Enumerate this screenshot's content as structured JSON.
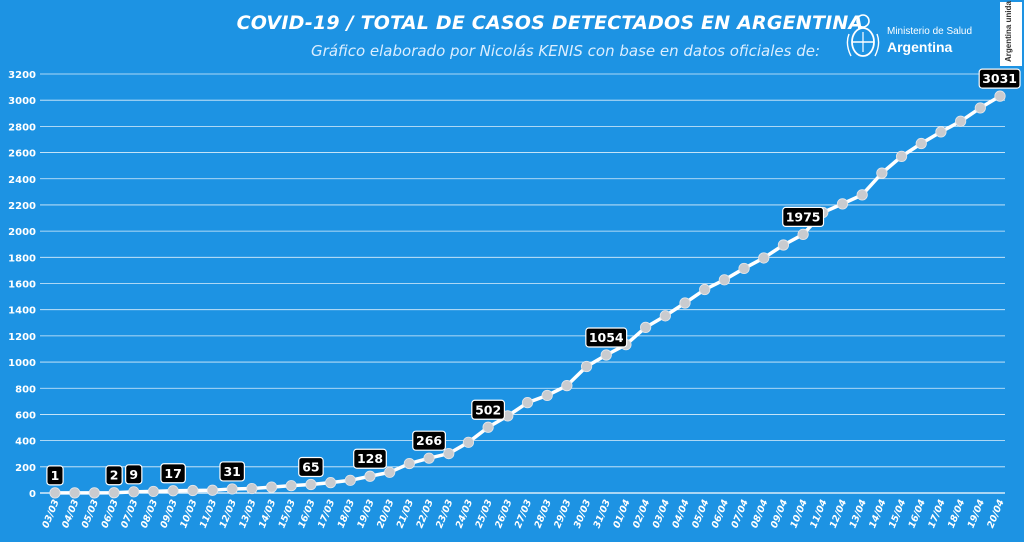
{
  "header": {
    "title": "COVID-19  /  TOTAL DE CASOS DETECTADOS EN ARGENTINA",
    "subtitle": "Gráfico elaborado por Nicolás KENIS con base en datos oficiales de:",
    "logo_line1": "Ministerio de Salud",
    "logo_line2": "Argentina",
    "badge": "Argentina unida"
  },
  "colors": {
    "background": "#1d93e3",
    "line": "#ffffff",
    "marker": "#c9cbcf",
    "label_bg": "#000000",
    "label_text": "#ffffff",
    "grid": "#ffffff"
  },
  "chart_data": {
    "type": "line",
    "title": "COVID-19  /  TOTAL DE CASOS DETECTADOS EN ARGENTINA",
    "xlabel": "",
    "ylabel": "",
    "ylim": [
      0,
      3200
    ],
    "yticks": [
      "0",
      "200",
      "400",
      "600",
      "800",
      "1000",
      "1200",
      "1400",
      "1600",
      "1800",
      "2000",
      "2200",
      "2400",
      "2600",
      "2800",
      "3000",
      "3200"
    ],
    "grid": true,
    "legend": "none",
    "categories": [
      "03/03",
      "04/03",
      "05/03",
      "06/03",
      "07/03",
      "08/03",
      "09/03",
      "10/03",
      "11/03",
      "12/03",
      "13/03",
      "14/03",
      "15/03",
      "16/03",
      "17/03",
      "18/03",
      "19/03",
      "20/03",
      "21/03",
      "22/03",
      "23/03",
      "24/03",
      "25/03",
      "26/03",
      "27/03",
      "28/03",
      "29/03",
      "30/03",
      "31/03",
      "01/04",
      "02/04",
      "03/04",
      "04/04",
      "05/04",
      "06/04",
      "07/04",
      "08/04",
      "09/04",
      "10/04",
      "11/04",
      "12/04",
      "13/04",
      "14/04",
      "15/04",
      "16/04",
      "17/04",
      "18/04",
      "19/04",
      "20/04"
    ],
    "values": [
      1,
      1,
      1,
      2,
      9,
      12,
      17,
      19,
      21,
      31,
      34,
      45,
      56,
      65,
      79,
      97,
      128,
      158,
      225,
      266,
      301,
      387,
      502,
      589,
      690,
      745,
      820,
      966,
      1054,
      1133,
      1265,
      1353,
      1451,
      1554,
      1628,
      1715,
      1795,
      1894,
      1975,
      2142,
      2208,
      2277,
      2443,
      2571,
      2669,
      2758,
      2839,
      2941,
      3031
    ],
    "labeled_points": [
      {
        "index": 0,
        "text": "1"
      },
      {
        "index": 3,
        "text": "2"
      },
      {
        "index": 4,
        "text": "9"
      },
      {
        "index": 6,
        "text": "17"
      },
      {
        "index": 9,
        "text": "31"
      },
      {
        "index": 13,
        "text": "65"
      },
      {
        "index": 16,
        "text": "128"
      },
      {
        "index": 19,
        "text": "266"
      },
      {
        "index": 22,
        "text": "502"
      },
      {
        "index": 28,
        "text": "1054"
      },
      {
        "index": 38,
        "text": "1975"
      },
      {
        "index": 48,
        "text": "3031"
      }
    ]
  }
}
